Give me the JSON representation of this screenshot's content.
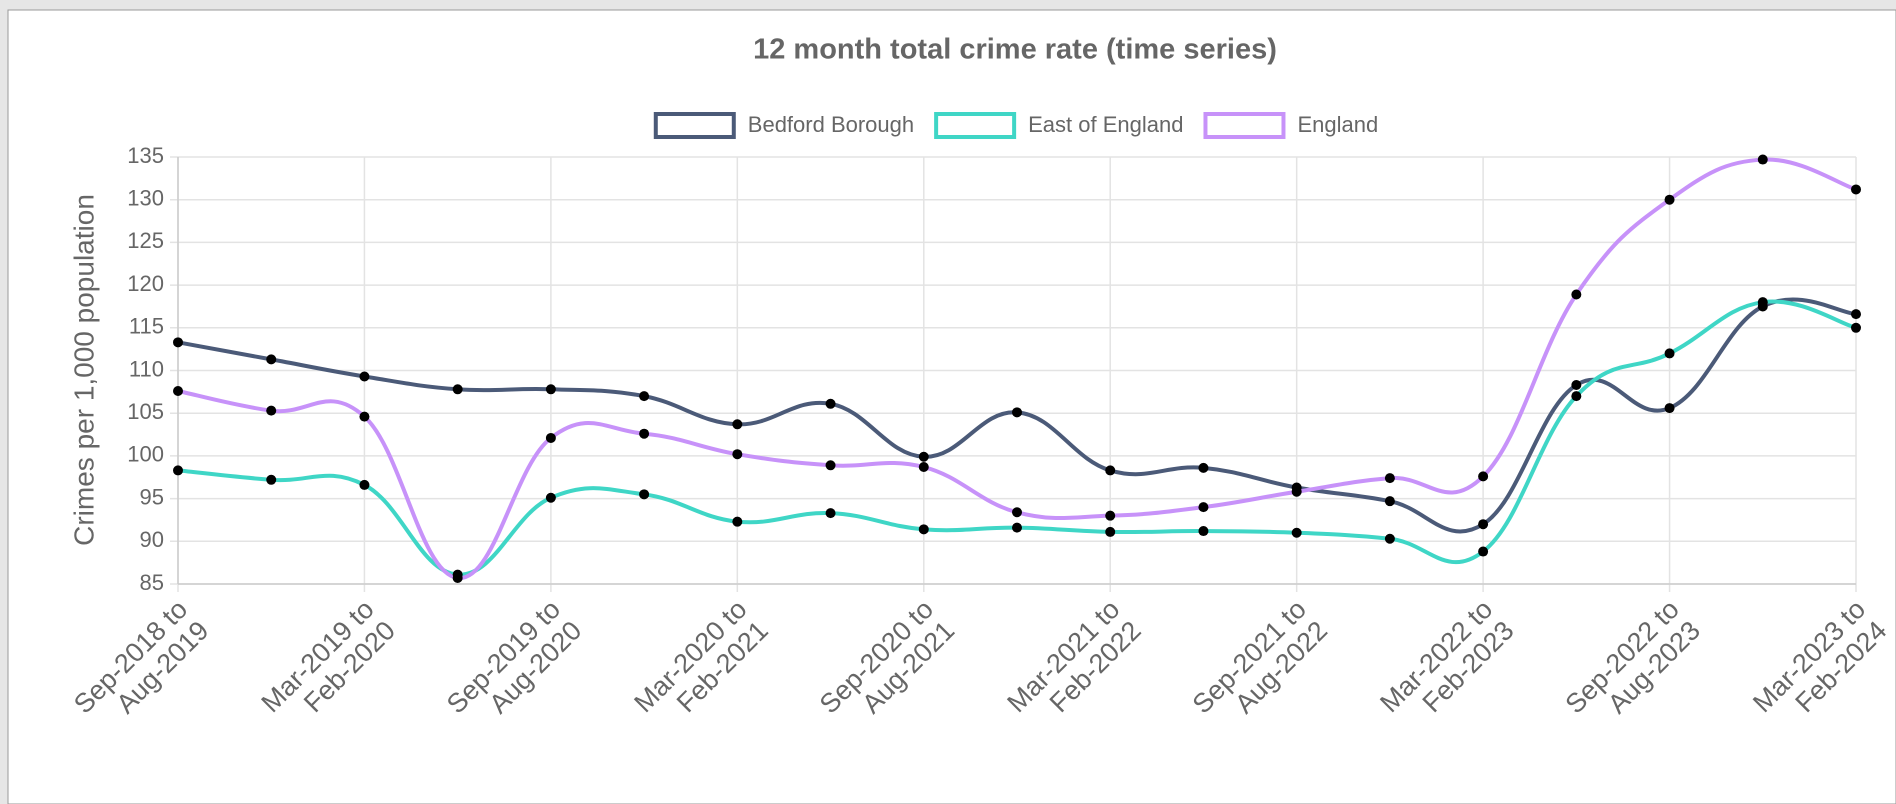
{
  "chart_data": {
    "type": "line",
    "title": "12 month total crime rate (time series)",
    "y_label": "Crimes per 1,000 population",
    "categories": [
      [
        "Sep-2018 to",
        "Aug-2019"
      ],
      null,
      [
        "Mar-2019 to",
        "Feb-2020"
      ],
      null,
      [
        "Sep-2019 to",
        "Aug-2020"
      ],
      null,
      [
        "Mar-2020 to",
        "Feb-2021"
      ],
      null,
      [
        "Sep-2020 to",
        "Aug-2021"
      ],
      null,
      [
        "Mar-2021 to",
        "Feb-2022"
      ],
      null,
      [
        "Sep-2021 to",
        "Aug-2022"
      ],
      null,
      [
        "Mar-2022 to",
        "Feb-2023"
      ],
      null,
      [
        "Sep-2022 to",
        "Aug-2023"
      ],
      null,
      [
        "Mar-2023 to",
        "Feb-2024"
      ]
    ],
    "series": [
      {
        "name": "Bedford Borough",
        "color": "#4b5a78",
        "values": [
          113.3,
          111.3,
          109.3,
          107.8,
          107.8,
          107.0,
          103.7,
          106.1,
          99.9,
          105.1,
          98.3,
          98.6,
          96.3,
          94.7,
          92.0,
          108.3,
          105.6,
          117.5,
          116.6
        ]
      },
      {
        "name": "East of England",
        "color": "#3fd6c6",
        "values": [
          98.3,
          97.2,
          96.6,
          86.1,
          95.1,
          95.5,
          92.3,
          93.3,
          91.4,
          91.6,
          91.1,
          91.2,
          91.0,
          90.3,
          88.8,
          107.0,
          112.0,
          118.0,
          115.0
        ]
      },
      {
        "name": "England",
        "color": "#c792f9",
        "values": [
          107.6,
          105.3,
          104.6,
          85.7,
          102.1,
          102.6,
          100.2,
          98.9,
          98.7,
          93.4,
          93.0,
          94.0,
          95.8,
          97.4,
          97.6,
          118.9,
          130.0,
          134.7,
          131.2
        ]
      }
    ],
    "ylim": [
      85,
      135
    ],
    "yticks": [
      85,
      90,
      95,
      100,
      105,
      110,
      115,
      120,
      125,
      130,
      135
    ],
    "grid": true,
    "legend": "top"
  }
}
